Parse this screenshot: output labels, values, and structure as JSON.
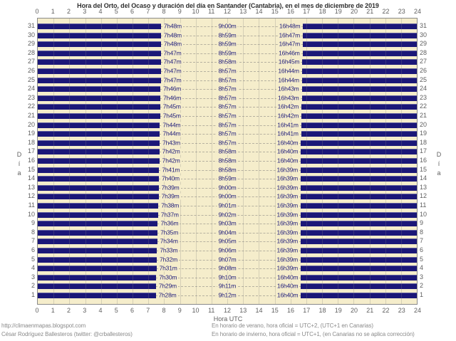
{
  "title": "Hora del Orto, del Ocaso y duración del día en Santander (Cantabria), en el mes de diciembre de 2019",
  "top_axis": {
    "hours": [
      0,
      1,
      2,
      3,
      4,
      5,
      6,
      7,
      8,
      9,
      10,
      11,
      12,
      13,
      14,
      15,
      16,
      17,
      18,
      19,
      20,
      21,
      22,
      23,
      24
    ]
  },
  "bottom_axis": {
    "hours": [
      0,
      1,
      2,
      3,
      4,
      5,
      6,
      7,
      8,
      9,
      10,
      11,
      12,
      13,
      14,
      15,
      16,
      17,
      18,
      19,
      20,
      21,
      22,
      23,
      24
    ],
    "label": "Hora UTC"
  },
  "y_axis": {
    "label": "Día",
    "label_chars": [
      "D",
      "í",
      "a"
    ]
  },
  "footer": {
    "left_lines": [
      "http://climaenmapas.blogspot.com",
      "César Rodríguez Ballesteros (twitter: @crballesteros)"
    ],
    "right_lines": [
      "En horario de verano, hora oficial = UTC+2, (UTC+1 en Canarias)",
      "En horario de invierno, hora oficial = UTC+1, (en Canarias no se aplica corrección)"
    ]
  },
  "colors": {
    "bar_navy": "#1b1778",
    "plot_background": "#f5edcb",
    "time_label_text": "#23207c",
    "axis_text": "#5f5f5f",
    "footer_text": "#8a8a8a",
    "frame": "#8a8a8a"
  },
  "chart_data": {
    "type": "bar",
    "orientation": "horizontal",
    "title": "Hora del Orto, del Ocaso y duración del día en Santander (Cantabria), en el mes de diciembre de 2019",
    "xlabel": "Hora UTC",
    "ylabel": "Día",
    "xlim": [
      0,
      24
    ],
    "x_ticks": [
      0,
      1,
      2,
      3,
      4,
      5,
      6,
      7,
      8,
      9,
      10,
      11,
      12,
      13,
      14,
      15,
      16,
      17,
      18,
      19,
      20,
      21,
      22,
      23,
      24
    ],
    "grid": true,
    "bars_represent": "night hours: dark bar 0h→orto and ocaso→24h per day; gap is daylight",
    "days": [
      {
        "day": 1,
        "orto": "7h28m",
        "duracion": "9h12m",
        "ocaso": "16h40m"
      },
      {
        "day": 2,
        "orto": "7h29m",
        "duracion": "9h11m",
        "ocaso": "16h40m"
      },
      {
        "day": 3,
        "orto": "7h30m",
        "duracion": "9h10m",
        "ocaso": "16h40m"
      },
      {
        "day": 4,
        "orto": "7h31m",
        "duracion": "9h08m",
        "ocaso": "16h39m"
      },
      {
        "day": 5,
        "orto": "7h32m",
        "duracion": "9h07m",
        "ocaso": "16h39m"
      },
      {
        "day": 6,
        "orto": "7h33m",
        "duracion": "9h06m",
        "ocaso": "16h39m"
      },
      {
        "day": 7,
        "orto": "7h34m",
        "duracion": "9h05m",
        "ocaso": "16h39m"
      },
      {
        "day": 8,
        "orto": "7h35m",
        "duracion": "9h04m",
        "ocaso": "16h39m"
      },
      {
        "day": 9,
        "orto": "7h36m",
        "duracion": "9h03m",
        "ocaso": "16h39m"
      },
      {
        "day": 10,
        "orto": "7h37m",
        "duracion": "9h02m",
        "ocaso": "16h39m"
      },
      {
        "day": 11,
        "orto": "7h38m",
        "duracion": "9h01m",
        "ocaso": "16h39m"
      },
      {
        "day": 12,
        "orto": "7h39m",
        "duracion": "9h00m",
        "ocaso": "16h39m"
      },
      {
        "day": 13,
        "orto": "7h39m",
        "duracion": "9h00m",
        "ocaso": "16h39m"
      },
      {
        "day": 14,
        "orto": "7h40m",
        "duracion": "8h59m",
        "ocaso": "16h39m"
      },
      {
        "day": 15,
        "orto": "7h41m",
        "duracion": "8h58m",
        "ocaso": "16h39m"
      },
      {
        "day": 16,
        "orto": "7h42m",
        "duracion": "8h58m",
        "ocaso": "16h40m"
      },
      {
        "day": 17,
        "orto": "7h42m",
        "duracion": "8h58m",
        "ocaso": "16h40m"
      },
      {
        "day": 18,
        "orto": "7h43m",
        "duracion": "8h57m",
        "ocaso": "16h40m"
      },
      {
        "day": 19,
        "orto": "7h44m",
        "duracion": "8h57m",
        "ocaso": "16h41m"
      },
      {
        "day": 20,
        "orto": "7h44m",
        "duracion": "8h57m",
        "ocaso": "16h41m"
      },
      {
        "day": 21,
        "orto": "7h45m",
        "duracion": "8h57m",
        "ocaso": "16h42m"
      },
      {
        "day": 22,
        "orto": "7h45m",
        "duracion": "8h57m",
        "ocaso": "16h42m"
      },
      {
        "day": 23,
        "orto": "7h46m",
        "duracion": "8h57m",
        "ocaso": "16h43m"
      },
      {
        "day": 24,
        "orto": "7h46m",
        "duracion": "8h57m",
        "ocaso": "16h43m"
      },
      {
        "day": 25,
        "orto": "7h47m",
        "duracion": "8h57m",
        "ocaso": "16h44m"
      },
      {
        "day": 26,
        "orto": "7h47m",
        "duracion": "8h57m",
        "ocaso": "16h44m"
      },
      {
        "day": 27,
        "orto": "7h47m",
        "duracion": "8h58m",
        "ocaso": "16h45m"
      },
      {
        "day": 28,
        "orto": "7h47m",
        "duracion": "8h59m",
        "ocaso": "16h46m"
      },
      {
        "day": 29,
        "orto": "7h48m",
        "duracion": "8h59m",
        "ocaso": "16h47m"
      },
      {
        "day": 30,
        "orto": "7h48m",
        "duracion": "8h59m",
        "ocaso": "16h47m"
      },
      {
        "day": 31,
        "orto": "7h48m",
        "duracion": "9h00m",
        "ocaso": "16h48m"
      }
    ]
  }
}
